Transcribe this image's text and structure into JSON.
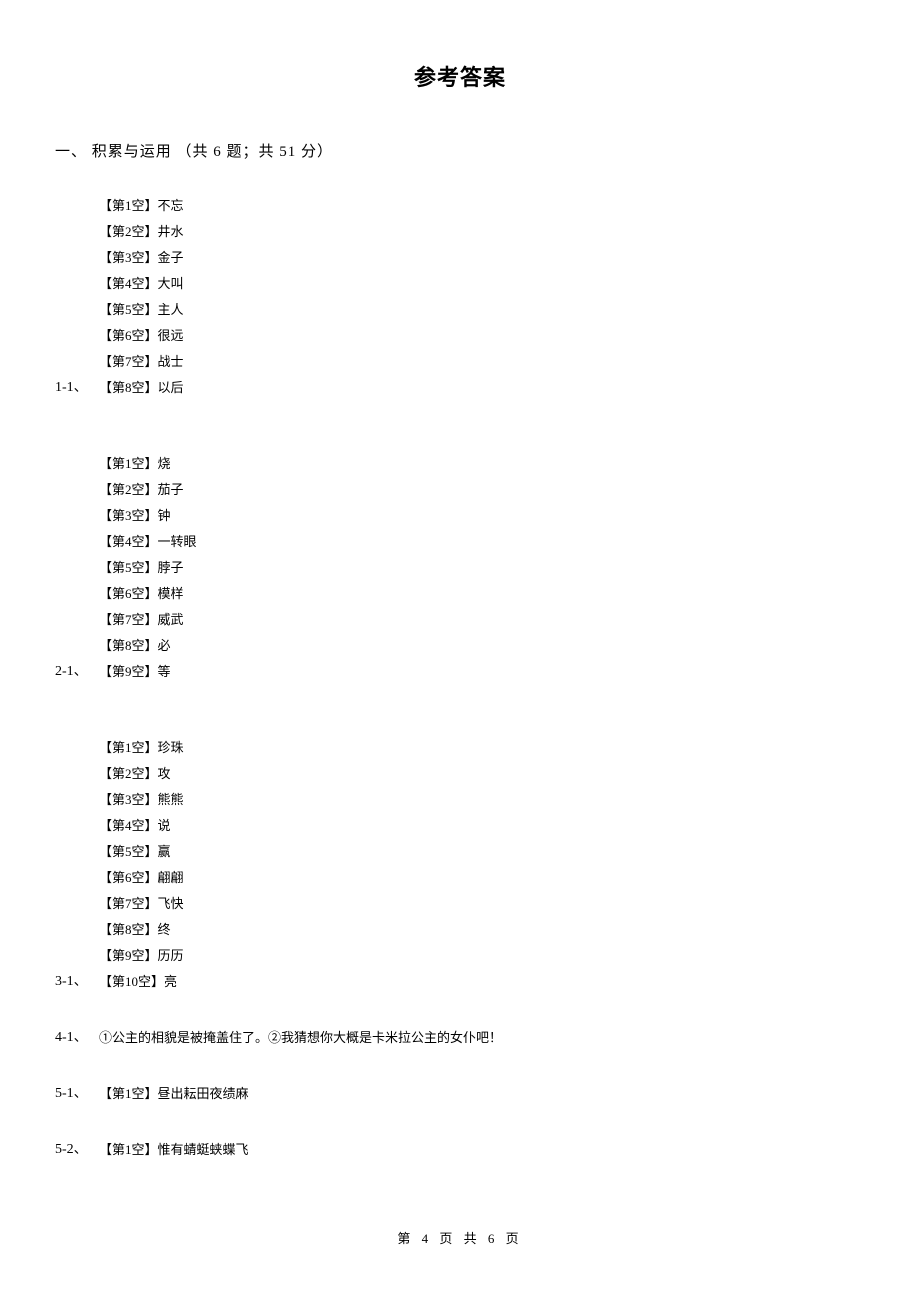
{
  "title": "参考答案",
  "section_header": "一、 积累与运用 （共 6 题；共 51 分）",
  "group1": {
    "label": "1-1、",
    "items": [
      "【第1空】不忘",
      "【第2空】井水",
      "【第3空】金子",
      "【第4空】大叫",
      "【第5空】主人",
      "【第6空】很远",
      "【第7空】战士",
      "【第8空】以后"
    ]
  },
  "group2": {
    "label": "2-1、",
    "items": [
      "【第1空】烧",
      "【第2空】茄子",
      "【第3空】钟",
      "【第4空】一转眼",
      "【第5空】脖子",
      "【第6空】模样",
      "【第7空】威武",
      "【第8空】必",
      "【第9空】等"
    ]
  },
  "group3": {
    "label": "3-1、",
    "items": [
      "【第1空】珍珠",
      "【第2空】攻",
      "【第3空】熊熊",
      "【第4空】说",
      "【第5空】赢",
      "【第6空】翩翩",
      "【第7空】飞快",
      "【第8空】终",
      "【第9空】历历",
      "【第10空】亮"
    ]
  },
  "group4": {
    "label": "4-1、",
    "text": "①公主的相貌是被掩盖住了。②我猜想你大概是卡米拉公主的女仆吧！"
  },
  "group5_1": {
    "label": "5-1、",
    "text": "【第1空】昼出耘田夜绩麻"
  },
  "group5_2": {
    "label": "5-2、",
    "text": "【第1空】惟有蜻蜓蛱蝶飞"
  },
  "footer": "第 4 页 共 6 页"
}
